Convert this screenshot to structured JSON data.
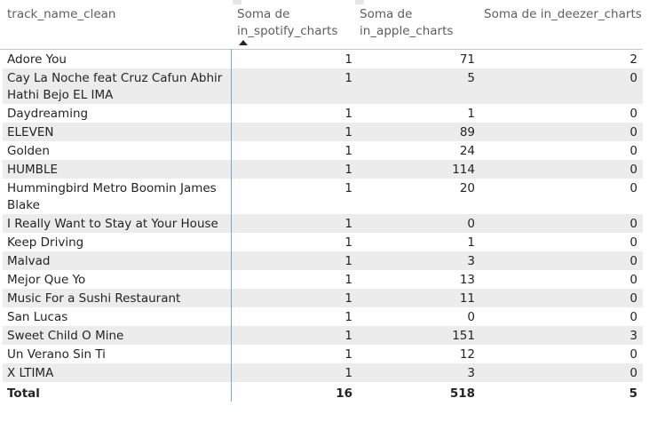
{
  "columns": {
    "track": "track_name_clean",
    "spotify": "Soma de in_spotify_charts",
    "apple": "Soma de in_apple_charts",
    "deezer": "Soma de in_deezer_charts"
  },
  "rows": [
    {
      "name": "Adore You",
      "spotify": "1",
      "apple": "71",
      "deezer": "2"
    },
    {
      "name": "Cay La Noche feat Cruz Cafun Abhir Hathi Bejo EL IMA",
      "spotify": "1",
      "apple": "5",
      "deezer": "0"
    },
    {
      "name": "Daydreaming",
      "spotify": "1",
      "apple": "1",
      "deezer": "0"
    },
    {
      "name": "ELEVEN",
      "spotify": "1",
      "apple": "89",
      "deezer": "0"
    },
    {
      "name": "Golden",
      "spotify": "1",
      "apple": "24",
      "deezer": "0"
    },
    {
      "name": "HUMBLE",
      "spotify": "1",
      "apple": "114",
      "deezer": "0"
    },
    {
      "name": "Hummingbird Metro Boomin James Blake",
      "spotify": "1",
      "apple": "20",
      "deezer": "0"
    },
    {
      "name": "I Really Want to Stay at Your House",
      "spotify": "1",
      "apple": "0",
      "deezer": "0"
    },
    {
      "name": "Keep Driving",
      "spotify": "1",
      "apple": "1",
      "deezer": "0"
    },
    {
      "name": "Malvad",
      "spotify": "1",
      "apple": "3",
      "deezer": "0"
    },
    {
      "name": "Mejor Que Yo",
      "spotify": "1",
      "apple": "13",
      "deezer": "0"
    },
    {
      "name": "Music For a Sushi Restaurant",
      "spotify": "1",
      "apple": "11",
      "deezer": "0"
    },
    {
      "name": "San Lucas",
      "spotify": "1",
      "apple": "0",
      "deezer": "0"
    },
    {
      "name": "Sweet Child O Mine",
      "spotify": "1",
      "apple": "151",
      "deezer": "3"
    },
    {
      "name": "Un Verano Sin Ti",
      "spotify": "1",
      "apple": "12",
      "deezer": "0"
    },
    {
      "name": "X LTIMA",
      "spotify": "1",
      "apple": "3",
      "deezer": "0"
    }
  ],
  "total": {
    "label": "Total",
    "spotify": "16",
    "apple": "518",
    "deezer": "5"
  },
  "colors": {
    "alt_row": "#ececec",
    "divider": "#6fa8dc",
    "header_text": "#605e5c"
  }
}
